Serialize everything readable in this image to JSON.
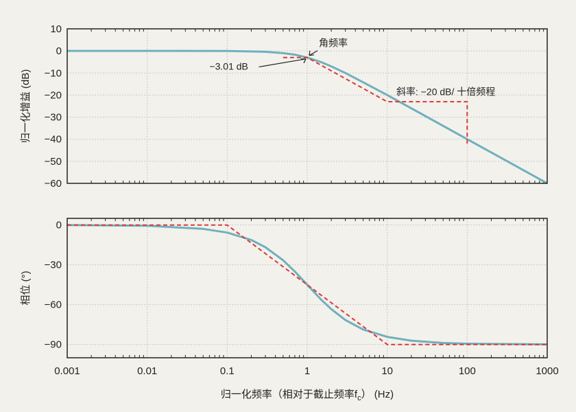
{
  "colors": {
    "curve": "#6fb0bd",
    "asymptote": "#d83a3a",
    "frame": "#222222",
    "grid": "#c9c9c9",
    "background": "#f3f1ec"
  },
  "chart_data": [
    {
      "type": "line",
      "id": "magnitude",
      "ylabel": "归一化增益 (dB)",
      "xscale": "log",
      "xlim": [
        0.001,
        1000
      ],
      "ylim": [
        -60,
        10
      ],
      "yticks": [
        "10",
        "0",
        "−10",
        "−20",
        "−30",
        "−40",
        "−50",
        "−60"
      ],
      "grid": true,
      "series": [
        {
          "style": "solid",
          "x": [
            0.001,
            0.01,
            0.1,
            0.3,
            0.5,
            0.7,
            1,
            1.5,
            2,
            3,
            5,
            10,
            30,
            100,
            300,
            1000
          ],
          "y": [
            0,
            -0.0004,
            -0.04,
            -0.4,
            -1.0,
            -1.7,
            -3.01,
            -5.1,
            -7.0,
            -10.0,
            -14.2,
            -20.0,
            -29.5,
            -40,
            -49.5,
            -60
          ]
        },
        {
          "style": "dashed",
          "x": [
            0.5,
            1,
            10,
            100,
            100
          ],
          "y": [
            -3,
            -3,
            -23,
            -23,
            -43
          ]
        }
      ],
      "annotations": [
        {
          "text": "角频率",
          "x": 1.4,
          "y": 2
        },
        {
          "text": "−3.01 dB",
          "x": 0.06,
          "y": -8.5
        },
        {
          "text": "斜率: −20 dB/ 十倍频程",
          "x": 13,
          "y": -20
        }
      ]
    },
    {
      "type": "line",
      "id": "phase",
      "ylabel": "相位 (°)",
      "xlabel": "归一化频率（相对于截止频率f",
      "xlabel_sub": "c",
      "xlabel_tail": "）  (Hz)",
      "xscale": "log",
      "xlim": [
        0.001,
        1000
      ],
      "ylim": [
        -100,
        5
      ],
      "xticks": [
        "0.001",
        "0.01",
        "0.1",
        "1",
        "10",
        "100",
        "1000"
      ],
      "yticks": [
        "0",
        "−30",
        "−60",
        "−90"
      ],
      "grid": true,
      "series": [
        {
          "style": "solid",
          "x": [
            0.001,
            0.01,
            0.05,
            0.1,
            0.2,
            0.3,
            0.5,
            0.7,
            1,
            1.5,
            2,
            3,
            5,
            10,
            20,
            50,
            100,
            1000
          ],
          "y": [
            -0.06,
            -0.6,
            -2.9,
            -5.7,
            -11.3,
            -16.7,
            -26.6,
            -35,
            -45,
            -56.3,
            -63.4,
            -71.6,
            -78.7,
            -84.3,
            -87.1,
            -88.9,
            -89.4,
            -89.9
          ]
        },
        {
          "style": "dashed",
          "x": [
            0.001,
            0.1,
            10,
            1000
          ],
          "y": [
            0,
            0,
            -90,
            -90
          ]
        }
      ]
    }
  ]
}
